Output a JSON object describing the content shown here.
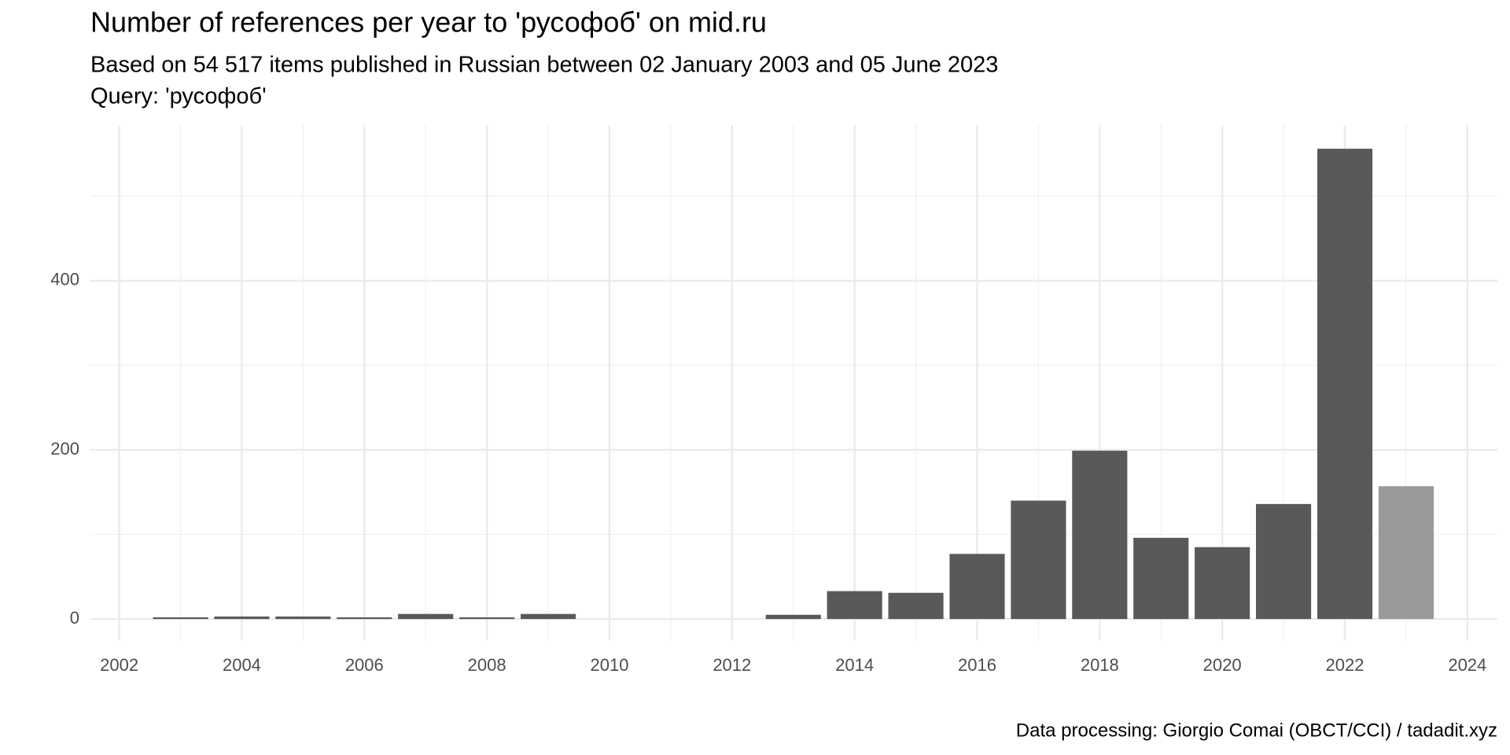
{
  "chart_data": {
    "type": "bar",
    "title": "Number of references per year to 'русофоб' on mid.ru",
    "subtitle": "Based on 54 517 items published in Russian between 02 January 2003 and 05 June 2023",
    "query": "Query: 'русофоб'",
    "caption": "Data processing: Giorgio Comai (OBCT/CCI) / tadadit.xyz",
    "x": [
      2003,
      2004,
      2005,
      2006,
      2007,
      2008,
      2009,
      2013,
      2014,
      2015,
      2016,
      2017,
      2018,
      2019,
      2020,
      2021,
      2022,
      2023
    ],
    "values": [
      2,
      3,
      3,
      2,
      6,
      2,
      6,
      5,
      33,
      31,
      77,
      140,
      199,
      96,
      85,
      136,
      556,
      157
    ],
    "bar_colors": [
      "#595959",
      "#595959",
      "#595959",
      "#595959",
      "#595959",
      "#595959",
      "#595959",
      "#595959",
      "#595959",
      "#595959",
      "#595959",
      "#595959",
      "#595959",
      "#595959",
      "#595959",
      "#595959",
      "#595959",
      "#999999"
    ],
    "xlim": [
      2001.53,
      2024.49
    ],
    "xticks": [
      2002,
      2004,
      2006,
      2008,
      2010,
      2012,
      2014,
      2016,
      2018,
      2020,
      2022,
      2024
    ],
    "x_minor_ticks": [
      2003,
      2005,
      2007,
      2009,
      2011,
      2013,
      2015,
      2017,
      2019,
      2021,
      2023
    ],
    "ylim": [
      -25,
      584
    ],
    "yticks": [
      0,
      200,
      400
    ],
    "y_minor_ticks": [
      100,
      300,
      500
    ],
    "grid": true
  }
}
